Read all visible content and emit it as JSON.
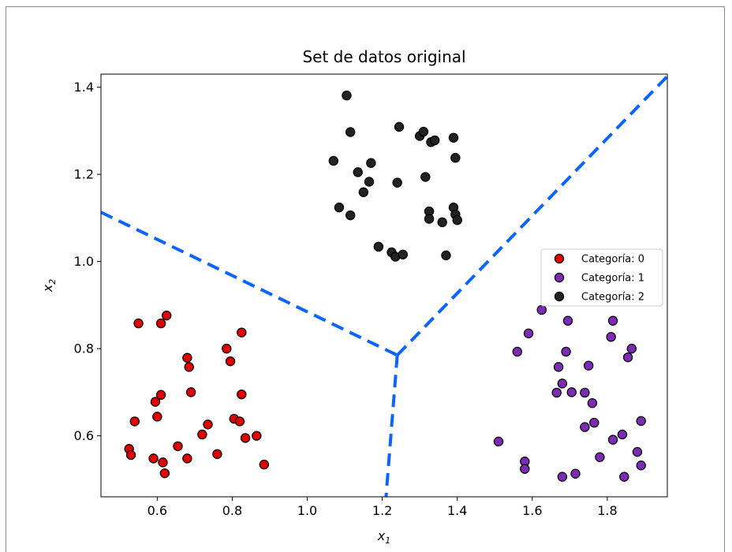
{
  "chart_data": {
    "type": "scatter",
    "title": "Set de datos original",
    "xlabel_base": "x",
    "xlabel_sub": "1",
    "ylabel_base": "x",
    "ylabel_sub": "2",
    "xlim": [
      0.45,
      1.96
    ],
    "ylim": [
      0.46,
      1.43
    ],
    "xticks": [
      0.6,
      0.8,
      1.0,
      1.2,
      1.4,
      1.6,
      1.8
    ],
    "xtick_labels": [
      "0.6",
      "0.8",
      "1.0",
      "1.2",
      "1.4",
      "1.6",
      "1.8"
    ],
    "yticks": [
      0.6,
      0.8,
      1.0,
      1.2,
      1.4
    ],
    "ytick_labels": [
      "0.6",
      "0.8",
      "1.0",
      "1.2",
      "1.4"
    ],
    "grid": false,
    "legend_position": "center-right",
    "series": [
      {
        "name": "Categoría: 0",
        "color": "#e10000",
        "points": [
          [
            0.55,
            0.858
          ],
          [
            0.61,
            0.858
          ],
          [
            0.625,
            0.876
          ],
          [
            0.54,
            0.633
          ],
          [
            0.525,
            0.57
          ],
          [
            0.53,
            0.556
          ],
          [
            0.59,
            0.548
          ],
          [
            0.6,
            0.644
          ],
          [
            0.595,
            0.678
          ],
          [
            0.61,
            0.694
          ],
          [
            0.615,
            0.539
          ],
          [
            0.62,
            0.514
          ],
          [
            0.655,
            0.576
          ],
          [
            0.68,
            0.548
          ],
          [
            0.68,
            0.779
          ],
          [
            0.685,
            0.758
          ],
          [
            0.69,
            0.7
          ],
          [
            0.72,
            0.603
          ],
          [
            0.735,
            0.626
          ],
          [
            0.76,
            0.558
          ],
          [
            0.785,
            0.8
          ],
          [
            0.795,
            0.771
          ],
          [
            0.825,
            0.837
          ],
          [
            0.825,
            0.695
          ],
          [
            0.805,
            0.639
          ],
          [
            0.82,
            0.633
          ],
          [
            0.835,
            0.595
          ],
          [
            0.865,
            0.6
          ],
          [
            0.885,
            0.534
          ]
        ]
      },
      {
        "name": "Categoría: 1",
        "color": "#7d2bb5",
        "points": [
          [
            1.51,
            0.587
          ],
          [
            1.56,
            0.793
          ],
          [
            1.58,
            0.541
          ],
          [
            1.58,
            0.524
          ],
          [
            1.59,
            0.835
          ],
          [
            1.625,
            0.889
          ],
          [
            1.665,
            0.699
          ],
          [
            1.67,
            0.758
          ],
          [
            1.68,
            0.72
          ],
          [
            1.69,
            0.793
          ],
          [
            1.695,
            0.864
          ],
          [
            1.705,
            0.7
          ],
          [
            1.68,
            0.506
          ],
          [
            1.715,
            0.513
          ],
          [
            1.74,
            0.699
          ],
          [
            1.74,
            0.62
          ],
          [
            1.75,
            0.761
          ],
          [
            1.76,
            0.675
          ],
          [
            1.765,
            0.63
          ],
          [
            1.78,
            0.551
          ],
          [
            1.81,
            0.827
          ],
          [
            1.815,
            0.864
          ],
          [
            1.815,
            0.591
          ],
          [
            1.84,
            0.603
          ],
          [
            1.845,
            0.506
          ],
          [
            1.855,
            0.78
          ],
          [
            1.865,
            0.8
          ],
          [
            1.88,
            0.563
          ],
          [
            1.89,
            0.532
          ],
          [
            1.89,
            0.634
          ]
        ]
      },
      {
        "name": "Categoría: 2",
        "color": "#222222",
        "points": [
          [
            1.07,
            1.231
          ],
          [
            1.085,
            1.124
          ],
          [
            1.105,
            1.381
          ],
          [
            1.115,
            1.297
          ],
          [
            1.115,
            1.106
          ],
          [
            1.135,
            1.205
          ],
          [
            1.15,
            1.159
          ],
          [
            1.165,
            1.183
          ],
          [
            1.17,
            1.226
          ],
          [
            1.19,
            1.034
          ],
          [
            1.225,
            1.021
          ],
          [
            1.235,
            1.011
          ],
          [
            1.24,
            1.181
          ],
          [
            1.245,
            1.309
          ],
          [
            1.255,
            1.016
          ],
          [
            1.3,
            1.288
          ],
          [
            1.31,
            1.298
          ],
          [
            1.315,
            1.194
          ],
          [
            1.325,
            1.115
          ],
          [
            1.325,
            1.098
          ],
          [
            1.33,
            1.274
          ],
          [
            1.34,
            1.278
          ],
          [
            1.36,
            1.09
          ],
          [
            1.37,
            1.014
          ],
          [
            1.39,
            1.124
          ],
          [
            1.39,
            1.284
          ],
          [
            1.395,
            1.108
          ],
          [
            1.395,
            1.238
          ],
          [
            1.4,
            1.095
          ]
        ]
      }
    ],
    "boundaries": [
      {
        "color": "#0a64ff",
        "style": "dashed",
        "points": [
          [
            0.45,
            1.113
          ],
          [
            1.24,
            0.785
          ]
        ]
      },
      {
        "color": "#0a64ff",
        "style": "dashed",
        "points": [
          [
            1.24,
            0.785
          ],
          [
            1.96,
            1.425
          ]
        ]
      },
      {
        "color": "#0a64ff",
        "style": "dashed",
        "points": [
          [
            1.24,
            0.785
          ],
          [
            1.21,
            0.46
          ]
        ]
      }
    ]
  }
}
